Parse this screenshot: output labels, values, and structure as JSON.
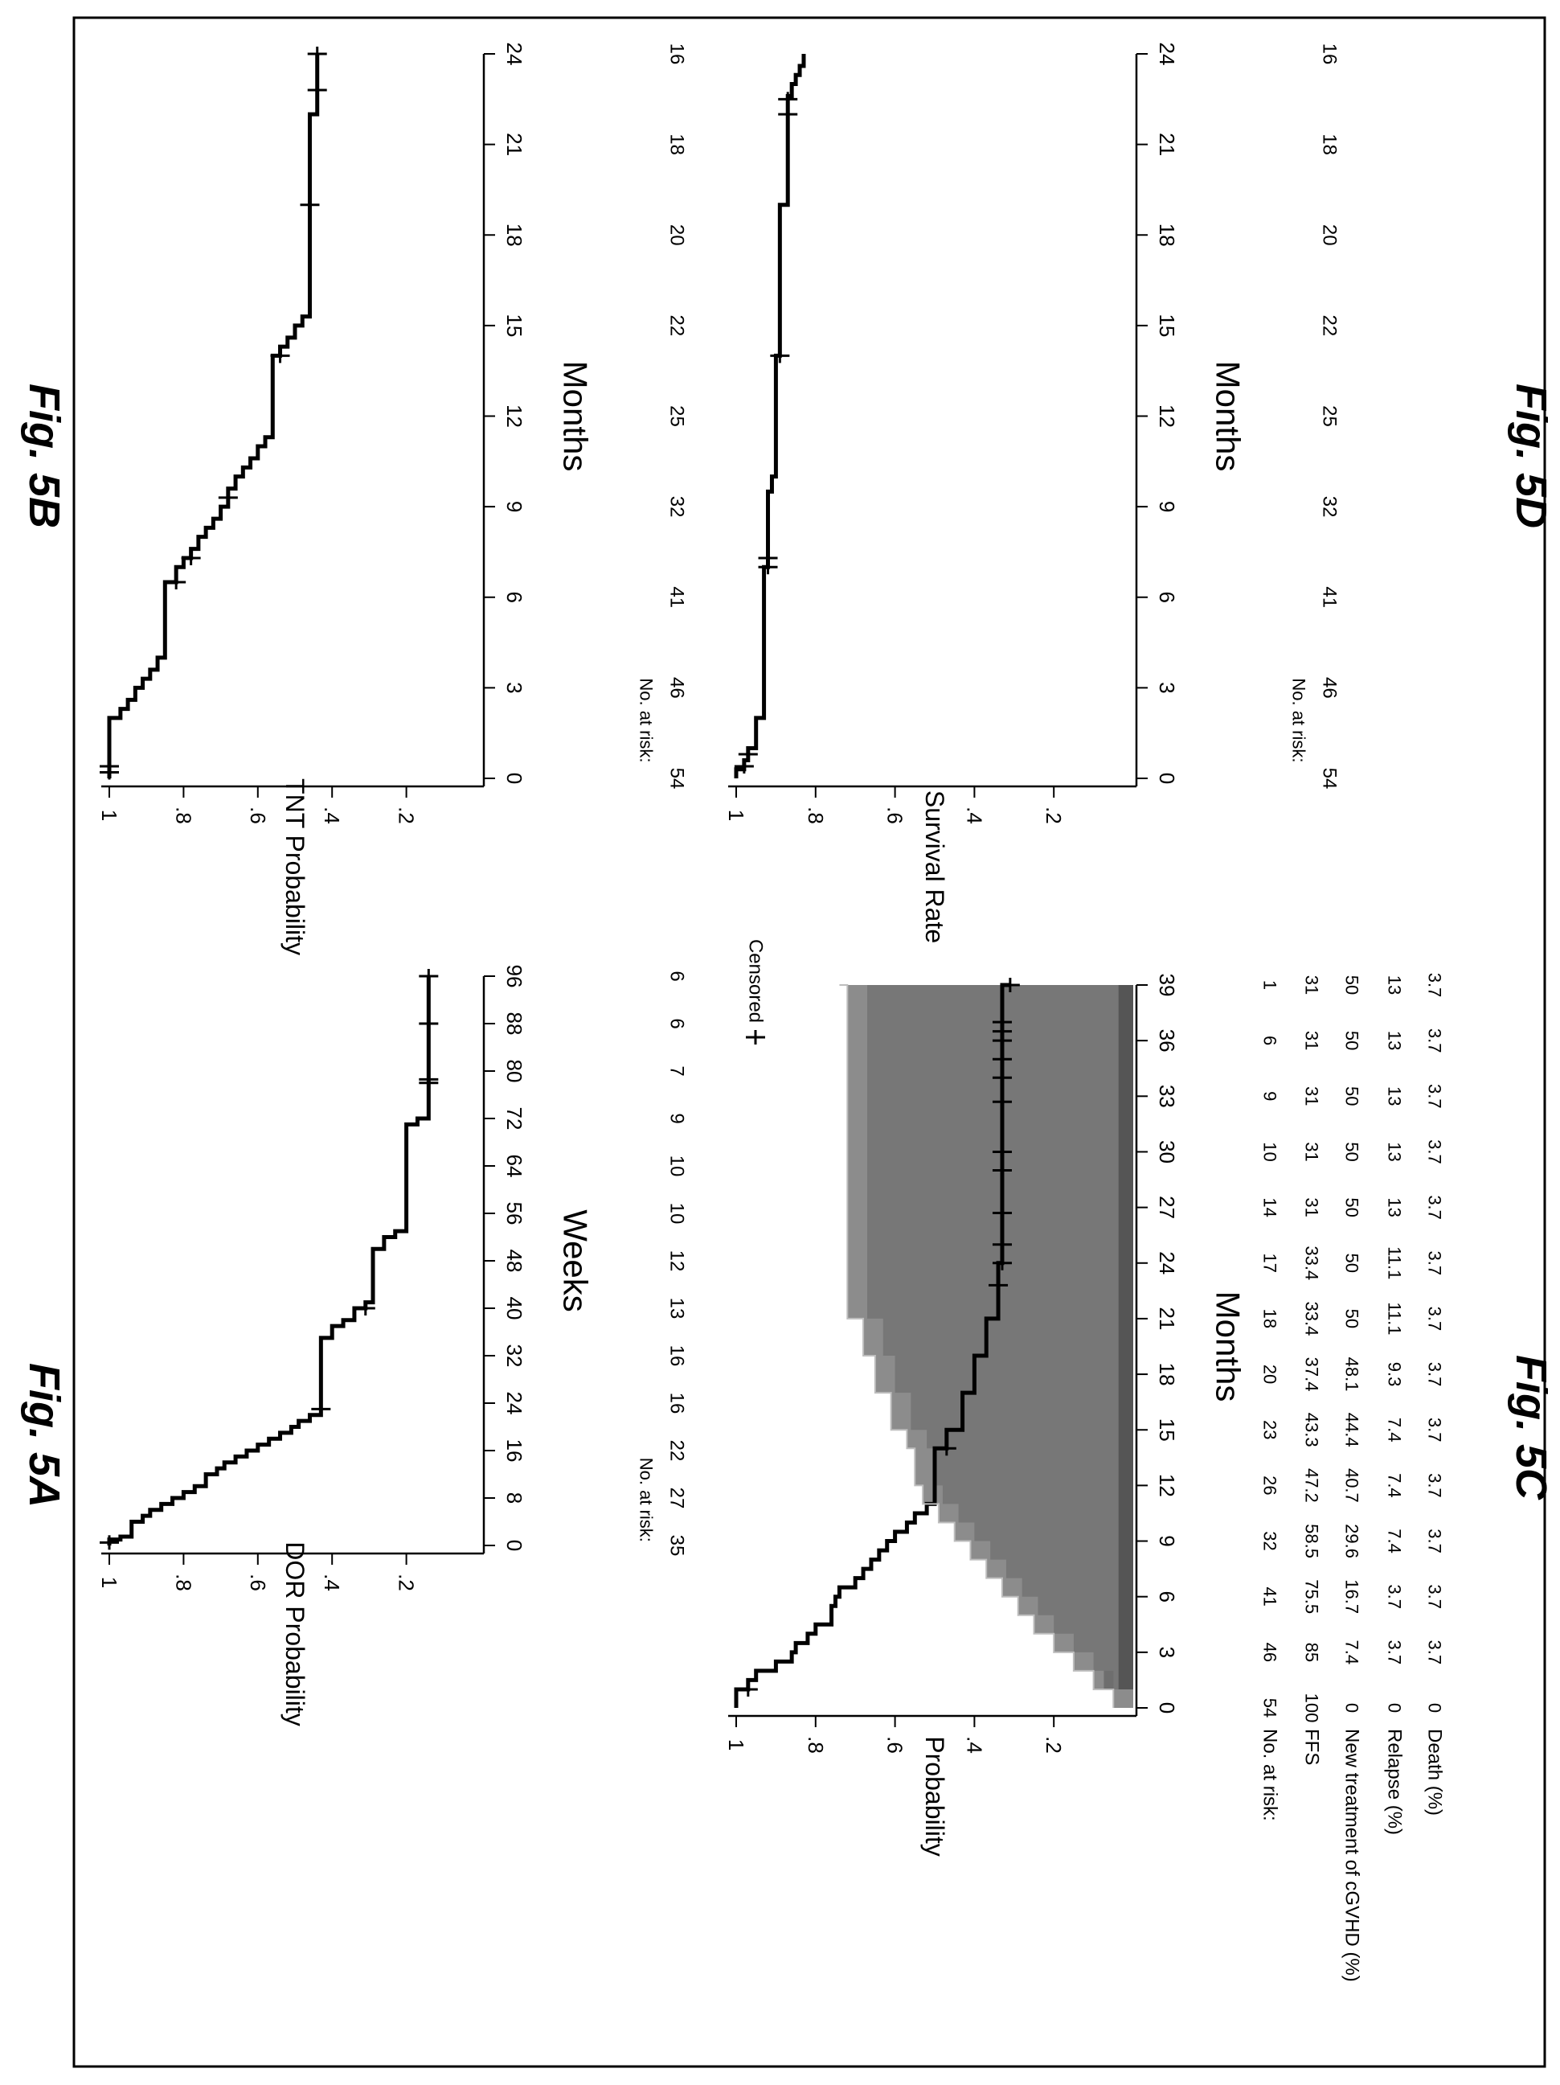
{
  "figures": {
    "fig5a": "Fig. 5A",
    "fig5b": "Fig. 5B",
    "fig5c": "Fig. 5C",
    "fig5d": "Fig. 5D"
  },
  "chart_data": [
    {
      "id": "5A",
      "type": "line",
      "step": true,
      "ylabel": "DOR Probability",
      "xlabel": "Weeks",
      "xticks": [
        0,
        8,
        16,
        24,
        32,
        40,
        48,
        56,
        64,
        72,
        80,
        88,
        96
      ],
      "xtick_labels": [
        "0",
        "8",
        "16",
        "24",
        "32",
        "40",
        "48",
        "56",
        "64",
        "72",
        "80",
        "88",
        "96"
      ],
      "yticks": [
        1,
        0.8,
        0.6,
        0.4,
        0.2
      ],
      "ytick_labels": [
        "1",
        ".8",
        ".6",
        ".4",
        ".2"
      ],
      "xlim": [
        0,
        96
      ],
      "ylim": [
        0,
        1
      ],
      "risk_label": "No. at risk:",
      "risk_counts": [
        "35",
        "27",
        "22",
        "16",
        "16",
        "13",
        "12",
        "10",
        "10",
        "9",
        "7",
        "6",
        "6"
      ],
      "x": [
        0,
        1,
        1.5,
        4,
        5,
        6,
        7,
        8,
        9,
        10,
        12,
        13,
        14,
        15,
        16,
        17,
        18,
        19,
        20,
        21,
        22,
        35,
        37,
        38,
        40,
        41,
        50,
        52,
        53,
        71,
        72,
        96
      ],
      "y": [
        1,
        0.97,
        0.94,
        0.91,
        0.89,
        0.86,
        0.83,
        0.8,
        0.77,
        0.74,
        0.71,
        0.69,
        0.66,
        0.63,
        0.6,
        0.57,
        0.54,
        0.51,
        0.49,
        0.46,
        0.43,
        0.4,
        0.37,
        0.34,
        0.31,
        0.29,
        0.26,
        0.23,
        0.2,
        0.17,
        0.14,
        0.14
      ],
      "censored_x": [
        0.5,
        23,
        40,
        78,
        78.6,
        88,
        96
      ]
    },
    {
      "id": "5B",
      "type": "line",
      "step": true,
      "ylabel": "TNT Probability",
      "xlabel": "Months",
      "xticks": [
        0,
        3,
        6,
        9,
        12,
        15,
        18,
        21,
        24
      ],
      "xtick_labels": [
        "0",
        "3",
        "6",
        "9",
        "12",
        "15",
        "18",
        "21",
        "24"
      ],
      "yticks": [
        1,
        0.8,
        0.6,
        0.4,
        0.2
      ],
      "ytick_labels": [
        "1",
        ".8",
        ".6",
        ".4",
        ".2"
      ],
      "xlim": [
        0,
        24
      ],
      "ylim": [
        0,
        1
      ],
      "risk_label": "No. at risk:",
      "risk_counts": [
        "54",
        "46",
        "41",
        "32",
        "25",
        "22",
        "20",
        "18",
        "16"
      ],
      "x": [
        0,
        2,
        2.3,
        2.6,
        3,
        3.3,
        3.6,
        4,
        6.5,
        7,
        7.3,
        7.6,
        8,
        8.3,
        8.6,
        9,
        9.6,
        10,
        10.3,
        10.6,
        11,
        11.3,
        14,
        14.3,
        14.6,
        15,
        15.3,
        22,
        24
      ],
      "y": [
        1,
        0.97,
        0.95,
        0.93,
        0.91,
        0.89,
        0.87,
        0.85,
        0.82,
        0.8,
        0.78,
        0.76,
        0.74,
        0.72,
        0.7,
        0.68,
        0.66,
        0.64,
        0.62,
        0.6,
        0.58,
        0.56,
        0.54,
        0.52,
        0.5,
        0.48,
        0.46,
        0.44,
        0.44
      ],
      "censored_x": [
        0.2,
        0.4,
        6.5,
        7.3,
        9.3,
        14,
        19,
        22.8,
        24
      ]
    },
    {
      "id": "5C",
      "type": "area",
      "ylabel": "Probability",
      "xlabel": "Months",
      "xticks": [
        0,
        3,
        6,
        9,
        12,
        15,
        18,
        21,
        24,
        27,
        30,
        33,
        36,
        39
      ],
      "xtick_labels": [
        "0",
        "3",
        "6",
        "9",
        "12",
        "15",
        "18",
        "21",
        "24",
        "27",
        "30",
        "33",
        "36",
        "39"
      ],
      "yticks": [
        1,
        0.8,
        0.6,
        0.4,
        0.2
      ],
      "ytick_labels": [
        "1",
        ".8",
        ".6",
        ".4",
        ".2"
      ],
      "xlim": [
        0,
        39
      ],
      "ylim": [
        0,
        1
      ],
      "legend": "Censored",
      "table": {
        "rows": [
          {
            "label": "No. at risk:",
            "values": [
              "54",
              "46",
              "41",
              "32",
              "26",
              "23",
              "20",
              "18",
              "17",
              "14",
              "10",
              "9",
              "6",
              "1"
            ]
          },
          {
            "label": "FFS",
            "values": [
              "100",
              "85",
              "75.5",
              "58.5",
              "47.2",
              "43.3",
              "37.4",
              "33.4",
              "33.4",
              "31",
              "31",
              "31",
              "31",
              "31"
            ]
          },
          {
            "label": "New treatment of cGVHD (%)",
            "values": [
              "0",
              "7.4",
              "16.7",
              "29.6",
              "40.7",
              "44.4",
              "48.1",
              "50",
              "50",
              "50",
              "50",
              "50",
              "50",
              "50"
            ]
          },
          {
            "label": "Relapse (%)",
            "values": [
              "0",
              "3.7",
              "3.7",
              "7.4",
              "7.4",
              "7.4",
              "9.3",
              "11.1",
              "11.1",
              "13",
              "13",
              "13",
              "13",
              "13"
            ]
          },
          {
            "label": "Death (%)",
            "values": [
              "0",
              "3.7",
              "3.7",
              "3.7",
              "3.7",
              "3.7",
              "3.7",
              "3.7",
              "3.7",
              "3.7",
              "3.7",
              "3.7",
              "3.7",
              "3.7"
            ]
          }
        ]
      },
      "ffs_x": [
        0,
        1,
        1.5,
        2,
        2.5,
        3,
        3.5,
        4,
        4.5,
        5,
        5.5,
        6,
        6.5,
        7,
        7.5,
        8,
        8.5,
        9,
        9.5,
        10,
        10.5,
        11,
        14,
        15,
        17,
        19,
        21,
        24,
        39
      ],
      "ffs_y": [
        1,
        0.97,
        0.95,
        0.9,
        0.86,
        0.85,
        0.82,
        0.8,
        0.76,
        0.76,
        0.75,
        0.74,
        0.7,
        0.68,
        0.66,
        0.64,
        0.62,
        0.6,
        0.57,
        0.55,
        0.52,
        0.5,
        0.47,
        0.43,
        0.4,
        0.37,
        0.34,
        0.33,
        0.31
      ],
      "death_cum_x": [
        0,
        1,
        3,
        39
      ],
      "death_cum_y": [
        0,
        0.037,
        0.037,
        0.037
      ],
      "relapse_cum_x": [
        0,
        1,
        3,
        9,
        15,
        18,
        21,
        27,
        39
      ],
      "relapse_cum_y": [
        0,
        0.074,
        0.074,
        0.111,
        0.111,
        0.13,
        0.148,
        0.167,
        0.167
      ],
      "newtx_cum_x": [
        0,
        1,
        2,
        3,
        4,
        5,
        6,
        7,
        8,
        9,
        10,
        11,
        12,
        14,
        15,
        17,
        19,
        21,
        39
      ],
      "newtx_cum_y": [
        0,
        0.05,
        0.1,
        0.15,
        0.2,
        0.24,
        0.28,
        0.32,
        0.36,
        0.4,
        0.44,
        0.48,
        0.5,
        0.52,
        0.56,
        0.6,
        0.63,
        0.67,
        0.69
      ],
      "censored_x": [
        1,
        14,
        22.8,
        24,
        25,
        26.7,
        29,
        30,
        32.7,
        34,
        35,
        36,
        36.5,
        37,
        39
      ]
    },
    {
      "id": "5D",
      "type": "line",
      "step": true,
      "ylabel": "Survival Rate",
      "xlabel": "Months",
      "xticks": [
        0,
        3,
        6,
        9,
        12,
        15,
        18,
        21,
        24
      ],
      "xtick_labels": [
        "0",
        "3",
        "6",
        "9",
        "12",
        "15",
        "18",
        "21",
        "24"
      ],
      "yticks": [
        1,
        0.8,
        0.6,
        0.4,
        0.2
      ],
      "ytick_labels": [
        "1",
        ".8",
        ".6",
        ".4",
        ".2"
      ],
      "xlim": [
        0,
        24
      ],
      "ylim": [
        0,
        1
      ],
      "risk_label": "No. at risk:",
      "risk_counts": [
        "54",
        "46",
        "41",
        "32",
        "25",
        "22",
        "20",
        "18",
        "16"
      ],
      "x": [
        0,
        0.3,
        0.6,
        1,
        2,
        7,
        9.5,
        10,
        14,
        19,
        22.6,
        23,
        23.3,
        23.6,
        24
      ],
      "y": [
        1,
        0.98,
        0.97,
        0.95,
        0.93,
        0.92,
        0.91,
        0.9,
        0.89,
        0.87,
        0.86,
        0.85,
        0.84,
        0.83,
        0.83
      ],
      "censored_x": [
        0.4,
        0.8,
        7,
        7.3,
        14,
        22,
        22.5
      ]
    }
  ]
}
